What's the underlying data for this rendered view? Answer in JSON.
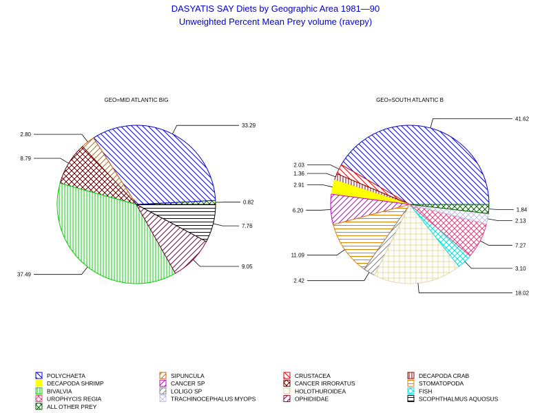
{
  "title": "DASYATIS SAY Diets by Geographic Area 1981—90",
  "subtitle": "Unweighted Percent Mean Prey volume (ravepy)",
  "chart_data": [
    {
      "type": "pie",
      "title": "GEO=MID ATLANTIC BIG",
      "start_angle_deg": 0,
      "slices": [
        {
          "category": "ALL OTHER PREY",
          "value": 0.82
        },
        {
          "category": "POLYCHAETA",
          "value": 33.29
        },
        {
          "category": "SIPUNCULA",
          "value": 2.8
        },
        {
          "category": "CANCER IRRORATUS",
          "value": 8.79
        },
        {
          "category": "BIVALVIA",
          "value": 37.49
        },
        {
          "category": "OPHIDIIDAE",
          "value": 9.05
        },
        {
          "category": "SCOPHTHALMUS AQUOSUS",
          "value": 7.76
        }
      ]
    },
    {
      "type": "pie",
      "title": "GEO=SOUTH ATLANTIC B",
      "start_angle_deg": 0,
      "slices": [
        {
          "category": "POLYCHAETA",
          "value": 41.62
        },
        {
          "category": "CRUSTACEA",
          "value": 2.03
        },
        {
          "category": "DECAPODA CRAB",
          "value": 1.36
        },
        {
          "category": "DECAPODA SHRIMP",
          "value": 2.91
        },
        {
          "category": "CANCER SP",
          "value": 6.2
        },
        {
          "category": "STOMATOPODA",
          "value": 11.09
        },
        {
          "category": "LOLIGO SP",
          "value": 2.42
        },
        {
          "category": "HOLOTHUROIDEA",
          "value": 18.02
        },
        {
          "category": "FISH",
          "value": 3.1
        },
        {
          "category": "UROPHYCIS REGIA",
          "value": 7.27
        },
        {
          "category": "TRACHINOCEPHALUS MYOPS",
          "value": 2.13
        },
        {
          "category": "ALL OTHER PREY",
          "value": 1.84
        }
      ]
    }
  ],
  "legend": [
    {
      "label": "POLYCHAETA",
      "color": "#0000cc",
      "pattern": "diag-down"
    },
    {
      "label": "SIPUNCULA",
      "color": "#c86400",
      "pattern": "diag-up"
    },
    {
      "label": "CRUSTACEA",
      "color": "#e00000",
      "pattern": "diag-down"
    },
    {
      "label": "DECAPODA CRAB",
      "color": "#800000",
      "pattern": "vertical"
    },
    {
      "label": "DECAPODA SHRIMP",
      "color": "#ffff00",
      "pattern": "solid"
    },
    {
      "label": "CANCER SP",
      "color": "#c000c0",
      "pattern": "diag-up"
    },
    {
      "label": "CANCER IRRORATUS",
      "color": "#600000",
      "pattern": "crosshatch"
    },
    {
      "label": "STOMATOPODA",
      "color": "#e08000",
      "pattern": "horizontal"
    },
    {
      "label": "BIVALVIA",
      "color": "#00cc00",
      "pattern": "vertical"
    },
    {
      "label": "LOLIGO SP",
      "color": "#808080",
      "pattern": "diag-up"
    },
    {
      "label": "HOLOTHUROIDEA",
      "color": "#e6d8a0",
      "pattern": "grid"
    },
    {
      "label": "FISH",
      "color": "#00e0e0",
      "pattern": "crosshatch"
    },
    {
      "label": "UROPHYCIS REGIA",
      "color": "#e04080",
      "pattern": "crosshatch"
    },
    {
      "label": "TRACHINOCEPHALUS MYOPS",
      "color": "#c0c0e8",
      "pattern": "crosshatch"
    },
    {
      "label": "OPHIDIIDAE",
      "color": "#800040",
      "pattern": "diag-up"
    },
    {
      "label": "SCOPHTHALMUS AQUOSUS",
      "color": "#000000",
      "pattern": "horizontal"
    },
    {
      "label": "ALL OTHER PREY",
      "color": "#006000",
      "pattern": "crosshatch"
    }
  ]
}
